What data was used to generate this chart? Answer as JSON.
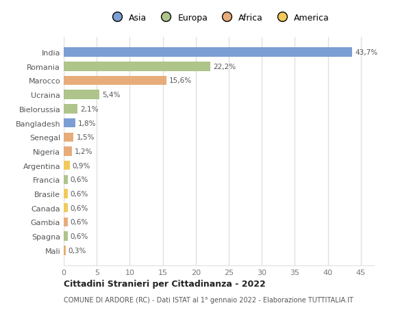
{
  "countries": [
    "India",
    "Romania",
    "Marocco",
    "Ucraina",
    "Bielorussia",
    "Bangladesh",
    "Senegal",
    "Nigeria",
    "Argentina",
    "Francia",
    "Brasile",
    "Canada",
    "Gambia",
    "Spagna",
    "Mali"
  ],
  "values": [
    43.7,
    22.2,
    15.6,
    5.4,
    2.1,
    1.8,
    1.5,
    1.2,
    0.9,
    0.6,
    0.6,
    0.6,
    0.6,
    0.6,
    0.3
  ],
  "labels": [
    "43,7%",
    "22,2%",
    "15,6%",
    "5,4%",
    "2,1%",
    "1,8%",
    "1,5%",
    "1,2%",
    "0,9%",
    "0,6%",
    "0,6%",
    "0,6%",
    "0,6%",
    "0,6%",
    "0,3%"
  ],
  "continents": [
    "Asia",
    "Europa",
    "Africa",
    "Europa",
    "Europa",
    "Asia",
    "Africa",
    "Africa",
    "America",
    "Europa",
    "America",
    "America",
    "Africa",
    "Europa",
    "Africa"
  ],
  "colors": {
    "Asia": "#7b9fd4",
    "Europa": "#aec48a",
    "Africa": "#e8ac7a",
    "America": "#f2ca5a"
  },
  "xlim": [
    0,
    47
  ],
  "xticks": [
    0,
    5,
    10,
    15,
    20,
    25,
    30,
    35,
    40,
    45
  ],
  "title": "Cittadini Stranieri per Cittadinanza - 2022",
  "subtitle": "COMUNE DI ARDORE (RC) - Dati ISTAT al 1° gennaio 2022 - Elaborazione TUTTITALIA.IT",
  "bg_color": "#ffffff",
  "grid_color": "#e0e0e0",
  "label_color": "#555555",
  "tick_color": "#777777"
}
